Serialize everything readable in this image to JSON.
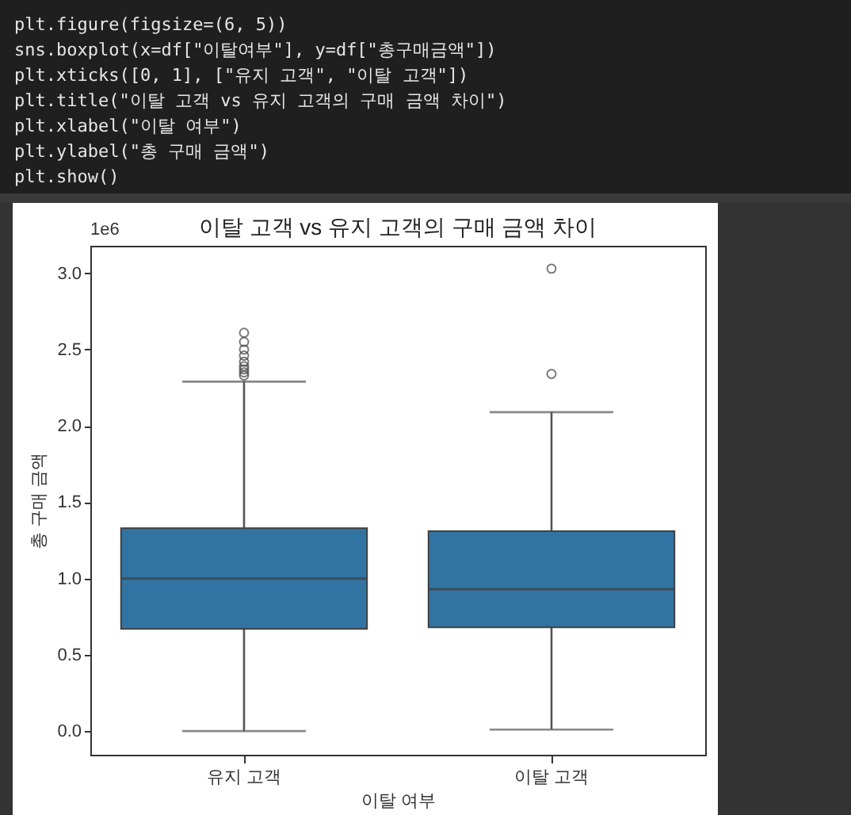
{
  "chart_data": {
    "type": "box",
    "title": "이탈 고객 vs 유지 고객의 구매 금액 차이",
    "xlabel": "이탈 여부",
    "ylabel": "총 구매 금액",
    "annotations": [
      "1e6",
      "plt.figure(figsize=(6, 5))",
      "sns.boxplot(x=df[\"이탈여부\"], y=df[\"총구매금액\"])",
      "plt.xticks([0, 1], [\"유지 고객\", \"이탈 고객\"])",
      "plt.title(\"이탈 고객 vs 유지 고객의 구매 금액 차이\")",
      "plt.xlabel(\"이탈 여부\")",
      "plt.ylabel(\"총 구매 금액\")",
      "plt.show()"
    ],
    "categories": [
      "유지 고객",
      "이탈 고객"
    ],
    "color": "#3274a1",
    "boxes": [
      {
        "low": 0.0,
        "q1": 0.67,
        "median": 1.0,
        "q3": 1.33,
        "high": 2.29,
        "outliers": [
          2.33,
          2.35,
          2.37,
          2.39,
          2.42,
          2.46,
          2.5,
          2.55,
          2.61
        ]
      },
      {
        "low": 0.01,
        "q1": 0.68,
        "median": 0.93,
        "q3": 1.31,
        "high": 2.09,
        "outliers": [
          2.34,
          3.03
        ]
      }
    ],
    "ylim": [
      -0.155,
      3.18
    ],
    "yticks": [
      {
        "value": 0,
        "label": "0.0"
      },
      {
        "value": 0.5,
        "label": "0.5"
      },
      {
        "value": 1,
        "label": "1.0"
      },
      {
        "value": 1.5,
        "label": "1.5"
      },
      {
        "value": 2,
        "label": "2.0"
      },
      {
        "value": 2.5,
        "label": "2.5"
      },
      {
        "value": 3,
        "label": "3.0"
      }
    ],
    "grid": false
  }
}
